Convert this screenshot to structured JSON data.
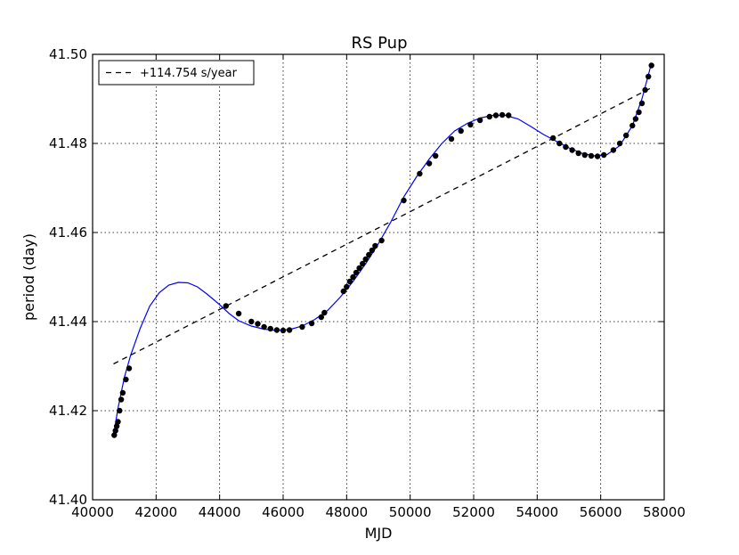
{
  "chart_data": {
    "type": "line",
    "title": "RS Pup",
    "xlabel": "MJD",
    "ylabel": "period (day)",
    "xlim": [
      40000,
      58000
    ],
    "ylim": [
      41.4,
      41.5
    ],
    "xticks": [
      40000,
      42000,
      44000,
      46000,
      48000,
      50000,
      52000,
      54000,
      56000,
      58000
    ],
    "yticks": [
      41.4,
      41.42,
      41.44,
      41.46,
      41.48,
      41.5
    ],
    "xtick_labels": [
      "40000",
      "42000",
      "44000",
      "46000",
      "48000",
      "50000",
      "52000",
      "54000",
      "56000",
      "58000"
    ],
    "ytick_labels": [
      "41.40",
      "41.42",
      "41.44",
      "41.46",
      "41.48",
      "41.50"
    ],
    "grid": true,
    "legend_position": "top-left",
    "series": [
      {
        "type": "line",
        "color": "#0000ff",
        "x": [
          40660,
          40800,
          41000,
          41200,
          41500,
          41800,
          42100,
          42400,
          42700,
          43000,
          43300,
          43600,
          44000,
          44300,
          44600,
          45000,
          45400,
          45800,
          46200,
          46600,
          47000,
          47400,
          47800,
          48200,
          48600,
          49000,
          49400,
          49800,
          50200,
          50600,
          51000,
          51400,
          51800,
          52200,
          52600,
          53000,
          53400,
          53800,
          54200,
          54600,
          55000,
          55400,
          55800,
          56200,
          56600,
          57000,
          57300,
          57600
        ],
        "y": [
          41.4145,
          41.4205,
          41.4275,
          41.4325,
          41.4385,
          41.4435,
          41.4465,
          41.4482,
          41.4488,
          41.4487,
          41.4478,
          41.4462,
          41.4438,
          41.4418,
          41.4402,
          41.439,
          41.4383,
          41.438,
          41.4382,
          41.439,
          41.4405,
          41.4425,
          41.4455,
          41.449,
          41.453,
          41.4575,
          41.4625,
          41.468,
          41.4725,
          41.4765,
          41.48,
          41.4828,
          41.4845,
          41.4857,
          41.4863,
          41.4863,
          41.4855,
          41.4838,
          41.482,
          41.4805,
          41.479,
          41.4778,
          41.4772,
          41.4775,
          41.4795,
          41.484,
          41.49,
          41.498
        ]
      },
      {
        "type": "scatter",
        "color": "#000000",
        "x": [
          40680,
          40720,
          40760,
          40800,
          40850,
          40900,
          40950,
          41050,
          41150,
          44200,
          44600,
          45000,
          45200,
          45400,
          45600,
          45800,
          46000,
          46200,
          46600,
          46900,
          47200,
          47300,
          47900,
          48000,
          48100,
          48200,
          48300,
          48400,
          48500,
          48600,
          48700,
          48800,
          48900,
          49100,
          49800,
          50300,
          50600,
          50800,
          51300,
          51600,
          51900,
          52200,
          52500,
          52700,
          52900,
          53100,
          54500,
          54700,
          54900,
          55100,
          55300,
          55500,
          55700,
          55900,
          56100,
          56400,
          56600,
          56800,
          57000,
          57100,
          57200,
          57300,
          57400,
          57500,
          57600
        ],
        "y": [
          41.4145,
          41.4155,
          41.4165,
          41.4175,
          41.42,
          41.4225,
          41.424,
          41.427,
          41.4295,
          41.4435,
          41.4418,
          41.44,
          41.4395,
          41.4388,
          41.4384,
          41.4381,
          41.438,
          41.4381,
          41.4388,
          41.4396,
          41.441,
          41.442,
          41.4468,
          41.4478,
          41.449,
          41.45,
          41.451,
          41.452,
          41.453,
          41.454,
          41.455,
          41.456,
          41.457,
          41.4582,
          41.4672,
          41.4732,
          41.4755,
          41.4772,
          41.481,
          41.4828,
          41.4842,
          41.4852,
          41.486,
          41.4863,
          41.4864,
          41.4863,
          41.4812,
          41.48,
          41.4792,
          41.4785,
          41.4778,
          41.4774,
          41.4772,
          41.4771,
          41.4774,
          41.4785,
          41.48,
          41.4818,
          41.484,
          41.4855,
          41.487,
          41.489,
          41.492,
          41.495,
          41.4975
        ]
      },
      {
        "type": "line",
        "style": "dashed",
        "color": "#000000",
        "name": "+114.754 s/year",
        "x": [
          40660,
          57600
        ],
        "y": [
          41.4305,
          41.4925
        ]
      }
    ]
  }
}
